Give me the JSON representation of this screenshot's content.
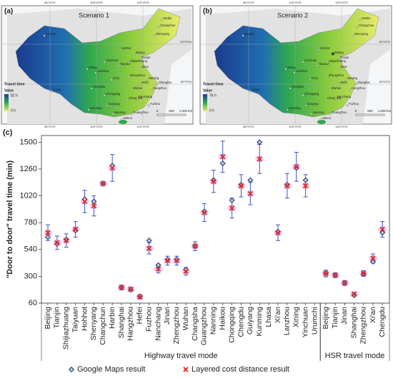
{
  "maps": {
    "panels": [
      {
        "label": "(a)",
        "title": "Scenario 1",
        "legend_title": "Travel time",
        "value_label": "Value",
        "max_label": "82 h",
        "min_label": "0 h"
      },
      {
        "label": "(b)",
        "title": "Scenario 2",
        "legend_title": "Travel time",
        "value_label": "Value",
        "max_label": "76 h",
        "min_label": "0 h"
      }
    ],
    "lon_labels": [
      "80°0'0\"E",
      "100°0'0\"E",
      "120°0'0\"E"
    ],
    "lat_labels": [
      "40°0'0\"N",
      "30°0'0\"N"
    ],
    "scale_labels": [
      "0",
      "500",
      "1,000 km"
    ],
    "cities": [
      "Urumqi",
      "Harbin",
      "Changchun",
      "Shenyang",
      "Hohhot",
      "Beijing",
      "Tianjin",
      "Shijiazhuang",
      "Taiyuan",
      "Yinchuan",
      "Jinan",
      "Xining",
      "Lanzhou",
      "Zhengzhou",
      "Xi'an",
      "Hefei",
      "Nanjing",
      "Shanghai",
      "Wuhan",
      "Hangzhou",
      "Chengdu",
      "Chongqing",
      "Changsha",
      "Nanchang",
      "Fuzhou",
      "Guiyang",
      "Kunming",
      "Nanning",
      "Guangzhou",
      "Haikou",
      "Lhasa"
    ]
  },
  "chart_data": {
    "type": "scatter",
    "panel_label": "(c)",
    "y_label": "\"Door to door\" travel time (min)",
    "categories": [
      "Beijing",
      "Tianjin",
      "Shijiazhuang",
      "Taiyuan",
      "Hohhot",
      "Shenyang",
      "Changchun",
      "Harbin",
      "Shanghai",
      "Hangzhou",
      "Hefei",
      "Fuzhou",
      "Nanchang",
      "Jinan",
      "Zhengzhou",
      "Wuhan",
      "Changsha",
      "Guangzhou",
      "Nanning",
      "Haikou",
      "Chongqing",
      "Chengdu",
      "Guiyang",
      "Kunming",
      "Lhasa",
      "Xi'an",
      "Lanzhou",
      "Xining",
      "Yinchuan",
      "Urumchi",
      "Beijing",
      "Tianjin",
      "Jinan",
      "Shanghai",
      "Zhengzhou",
      "Xi'an",
      "Chengdu"
    ],
    "group_labels": [
      "Highway travel mode",
      "HSR travel mode"
    ],
    "ylim": [
      60,
      1560
    ],
    "yticks": [
      60,
      300,
      540,
      780,
      1020,
      1260,
      1500
    ],
    "series": [
      {
        "name": "Google Maps result",
        "color": "#3b4a7e",
        "marker": "diamond",
        "values": [
          650,
          590,
          630,
          710,
          990,
          970,
          1130,
          1290,
          200,
          180,
          120,
          620,
          400,
          450,
          450,
          360,
          570,
          880,
          1160,
          1310,
          980,
          1120,
          1160,
          1500,
          null,
          700,
          1120,
          1270,
          1160,
          null,
          330,
          310,
          240,
          130,
          320,
          430,
          690
        ]
      },
      {
        "name": "Layered cost distance result",
        "color": "#e0302a",
        "marker": "x",
        "error_color": "#3a52c8",
        "values": [
          690,
          600,
          620,
          720,
          970,
          930,
          1130,
          1270,
          200,
          185,
          115,
          550,
          365,
          440,
          440,
          345,
          570,
          870,
          1150,
          1370,
          910,
          1110,
          1040,
          1350,
          null,
          690,
          1110,
          1280,
          1110,
          null,
          325,
          310,
          240,
          140,
          325,
          460,
          720
        ],
        "errors": [
          70,
          60,
          60,
          70,
          100,
          90,
          10,
          120,
          20,
          15,
          15,
          50,
          35,
          40,
          40,
          35,
          40,
          80,
          100,
          140,
          90,
          100,
          100,
          130,
          null,
          70,
          110,
          130,
          100,
          null,
          30,
          20,
          20,
          15,
          25,
          40,
          70
        ]
      }
    ]
  }
}
